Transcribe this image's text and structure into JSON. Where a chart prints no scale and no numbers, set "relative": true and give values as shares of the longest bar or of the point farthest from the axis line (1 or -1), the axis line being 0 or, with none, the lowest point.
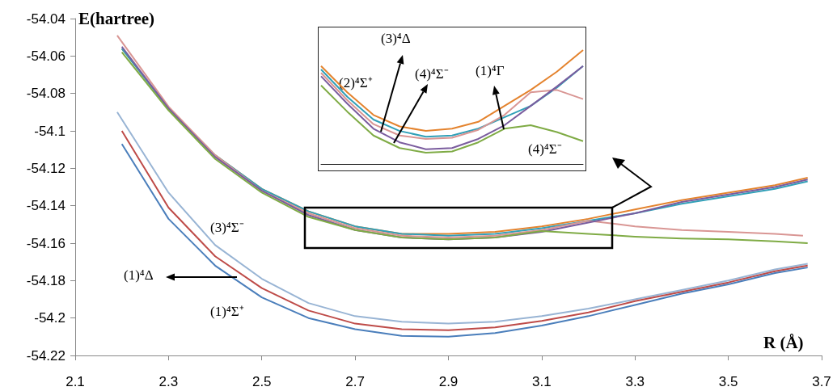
{
  "chart_data": [
    {
      "type": "line",
      "xlabel": "R (Å)",
      "ylabel": "E(hartree)",
      "xlim": [
        2.1,
        3.7
      ],
      "ylim": [
        -54.22,
        -54.04
      ],
      "xticks": [
        2.1,
        2.3,
        2.5,
        2.7,
        2.9,
        3.1,
        3.3,
        3.5,
        3.7
      ],
      "yticks": [
        -54.22,
        -54.2,
        -54.18,
        -54.16,
        -54.14,
        -54.12,
        -54.1,
        -54.08,
        -54.06,
        -54.04
      ],
      "marker": "none",
      "series": [
        {
          "color": "#e4832e",
          "x": [
            2.2,
            2.3,
            2.4,
            2.5,
            2.6,
            2.7,
            2.8,
            2.9,
            3.0,
            3.1,
            3.2,
            3.3,
            3.4,
            3.5,
            3.6,
            3.67
          ],
          "values": [
            -54.056,
            -54.088,
            -54.113,
            -54.131,
            -54.143,
            -54.151,
            -54.155,
            -54.155,
            -54.154,
            -54.151,
            -54.147,
            -54.142,
            -54.137,
            -54.133,
            -54.129,
            -54.125
          ]
        },
        {
          "color": "#31a0b8",
          "x": [
            2.2,
            2.3,
            2.4,
            2.5,
            2.6,
            2.7,
            2.8,
            2.9,
            3.0,
            3.1,
            3.2,
            3.3,
            3.4,
            3.5,
            3.6,
            3.67
          ],
          "values": [
            -54.056,
            -54.088,
            -54.113,
            -54.131,
            -54.143,
            -54.151,
            -54.155,
            -54.156,
            -54.155,
            -54.152,
            -54.148,
            -54.144,
            -54.139,
            -54.135,
            -54.131,
            -54.127
          ]
        },
        {
          "color": "#d99694",
          "x": [
            2.19,
            2.3,
            2.4,
            2.5,
            2.6,
            2.7,
            2.8,
            2.9,
            3.0,
            3.1,
            3.2,
            3.3,
            3.4,
            3.5,
            3.6,
            3.66
          ],
          "values": [
            -54.049,
            -54.087,
            -54.113,
            -54.132,
            -54.144,
            -54.152,
            -54.156,
            -54.157,
            -54.156,
            -54.153,
            -54.148,
            -54.151,
            -54.153,
            -54.154,
            -54.155,
            -54.156
          ]
        },
        {
          "color": "#7a5c9e",
          "x": [
            2.2,
            2.3,
            2.4,
            2.5,
            2.6,
            2.7,
            2.8,
            2.9,
            3.0,
            3.1,
            3.2,
            3.3,
            3.4,
            3.5,
            3.6,
            3.67
          ],
          "values": [
            -54.055,
            -54.088,
            -54.114,
            -54.132,
            -54.145,
            -54.153,
            -54.157,
            -54.158,
            -54.157,
            -54.154,
            -54.149,
            -54.144,
            -54.138,
            -54.134,
            -54.13,
            -54.126
          ]
        },
        {
          "color": "#7fab45",
          "x": [
            2.2,
            2.3,
            2.4,
            2.5,
            2.6,
            2.7,
            2.8,
            2.9,
            3.0,
            3.1,
            3.2,
            3.3,
            3.4,
            3.5,
            3.6,
            3.67
          ],
          "values": [
            -54.058,
            -54.089,
            -54.115,
            -54.133,
            -54.146,
            -54.153,
            -54.157,
            -54.158,
            -54.157,
            -54.1535,
            -54.155,
            -54.1565,
            -54.1575,
            -54.158,
            -54.159,
            -54.16
          ]
        },
        {
          "color": "#98b4d4",
          "x": [
            2.19,
            2.3,
            2.4,
            2.5,
            2.6,
            2.7,
            2.8,
            2.9,
            3.0,
            3.1,
            3.2,
            3.3,
            3.4,
            3.5,
            3.6,
            3.67
          ],
          "values": [
            -54.09,
            -54.133,
            -54.161,
            -54.179,
            -54.192,
            -54.199,
            -54.202,
            -54.203,
            -54.202,
            -54.199,
            -54.195,
            -54.19,
            -54.185,
            -54.18,
            -54.174,
            -54.171
          ]
        },
        {
          "color": "#be4b48",
          "x": [
            2.2,
            2.3,
            2.4,
            2.5,
            2.6,
            2.7,
            2.8,
            2.9,
            3.0,
            3.1,
            3.2,
            3.3,
            3.4,
            3.5,
            3.6,
            3.67
          ],
          "values": [
            -54.1,
            -54.141,
            -54.167,
            -54.184,
            -54.196,
            -54.203,
            -54.206,
            -54.2065,
            -54.205,
            -54.2015,
            -54.197,
            -54.191,
            -54.186,
            -54.181,
            -54.175,
            -54.172
          ]
        },
        {
          "color": "#4a7ebb",
          "x": [
            2.2,
            2.3,
            2.4,
            2.5,
            2.6,
            2.7,
            2.8,
            2.9,
            3.0,
            3.1,
            3.2,
            3.3,
            3.4,
            3.5,
            3.6,
            3.67
          ],
          "values": [
            -54.107,
            -54.147,
            -54.172,
            -54.189,
            -54.2,
            -54.206,
            -54.2095,
            -54.21,
            -54.208,
            -54.204,
            -54.199,
            -54.193,
            -54.187,
            -54.182,
            -54.176,
            -54.173
          ]
        }
      ],
      "annotations": [
        "(3)⁴Σ⁻",
        "(1)⁴Δ",
        "(1)⁴Σ⁺"
      ]
    },
    {
      "type": "line",
      "relative": true,
      "marker": "none",
      "categories": [
        null,
        null,
        null,
        null,
        null,
        null,
        null,
        null,
        null,
        null,
        null
      ],
      "series": [
        {
          "color": "#e4832e",
          "values": [
            0.86,
            0.63,
            0.43,
            0.33,
            0.29,
            0.31,
            0.37,
            0.51,
            0.65,
            0.81,
            1
          ]
        },
        {
          "color": "#31a0b8",
          "values": [
            0.83,
            0.59,
            0.39,
            0.29,
            0.24,
            0.25,
            0.31,
            0.41,
            0.51,
            0.67,
            0.86
          ]
        },
        {
          "color": "#d99694",
          "values": [
            0.8,
            0.56,
            0.35,
            0.25,
            0.22,
            0.23,
            0.3,
            0.43,
            0.63,
            0.65,
            0.57
          ]
        },
        {
          "color": "#7a5c9e",
          "values": [
            0.77,
            0.53,
            0.31,
            0.19,
            0.13,
            0.14,
            0.22,
            0.34,
            0.51,
            0.68,
            0.86
          ]
        },
        {
          "color": "#7fab45",
          "values": [
            0.69,
            0.46,
            0.25,
            0.14,
            0.1,
            0.11,
            0.19,
            0.31,
            0.34,
            0.28,
            0.2
          ]
        }
      ],
      "annotations": [
        "(3)⁴Δ",
        "(2)⁴Σ⁺",
        "(4)⁴Σ⁻",
        "(1)⁴Γ",
        "(4)⁴Σ⁻"
      ]
    }
  ]
}
